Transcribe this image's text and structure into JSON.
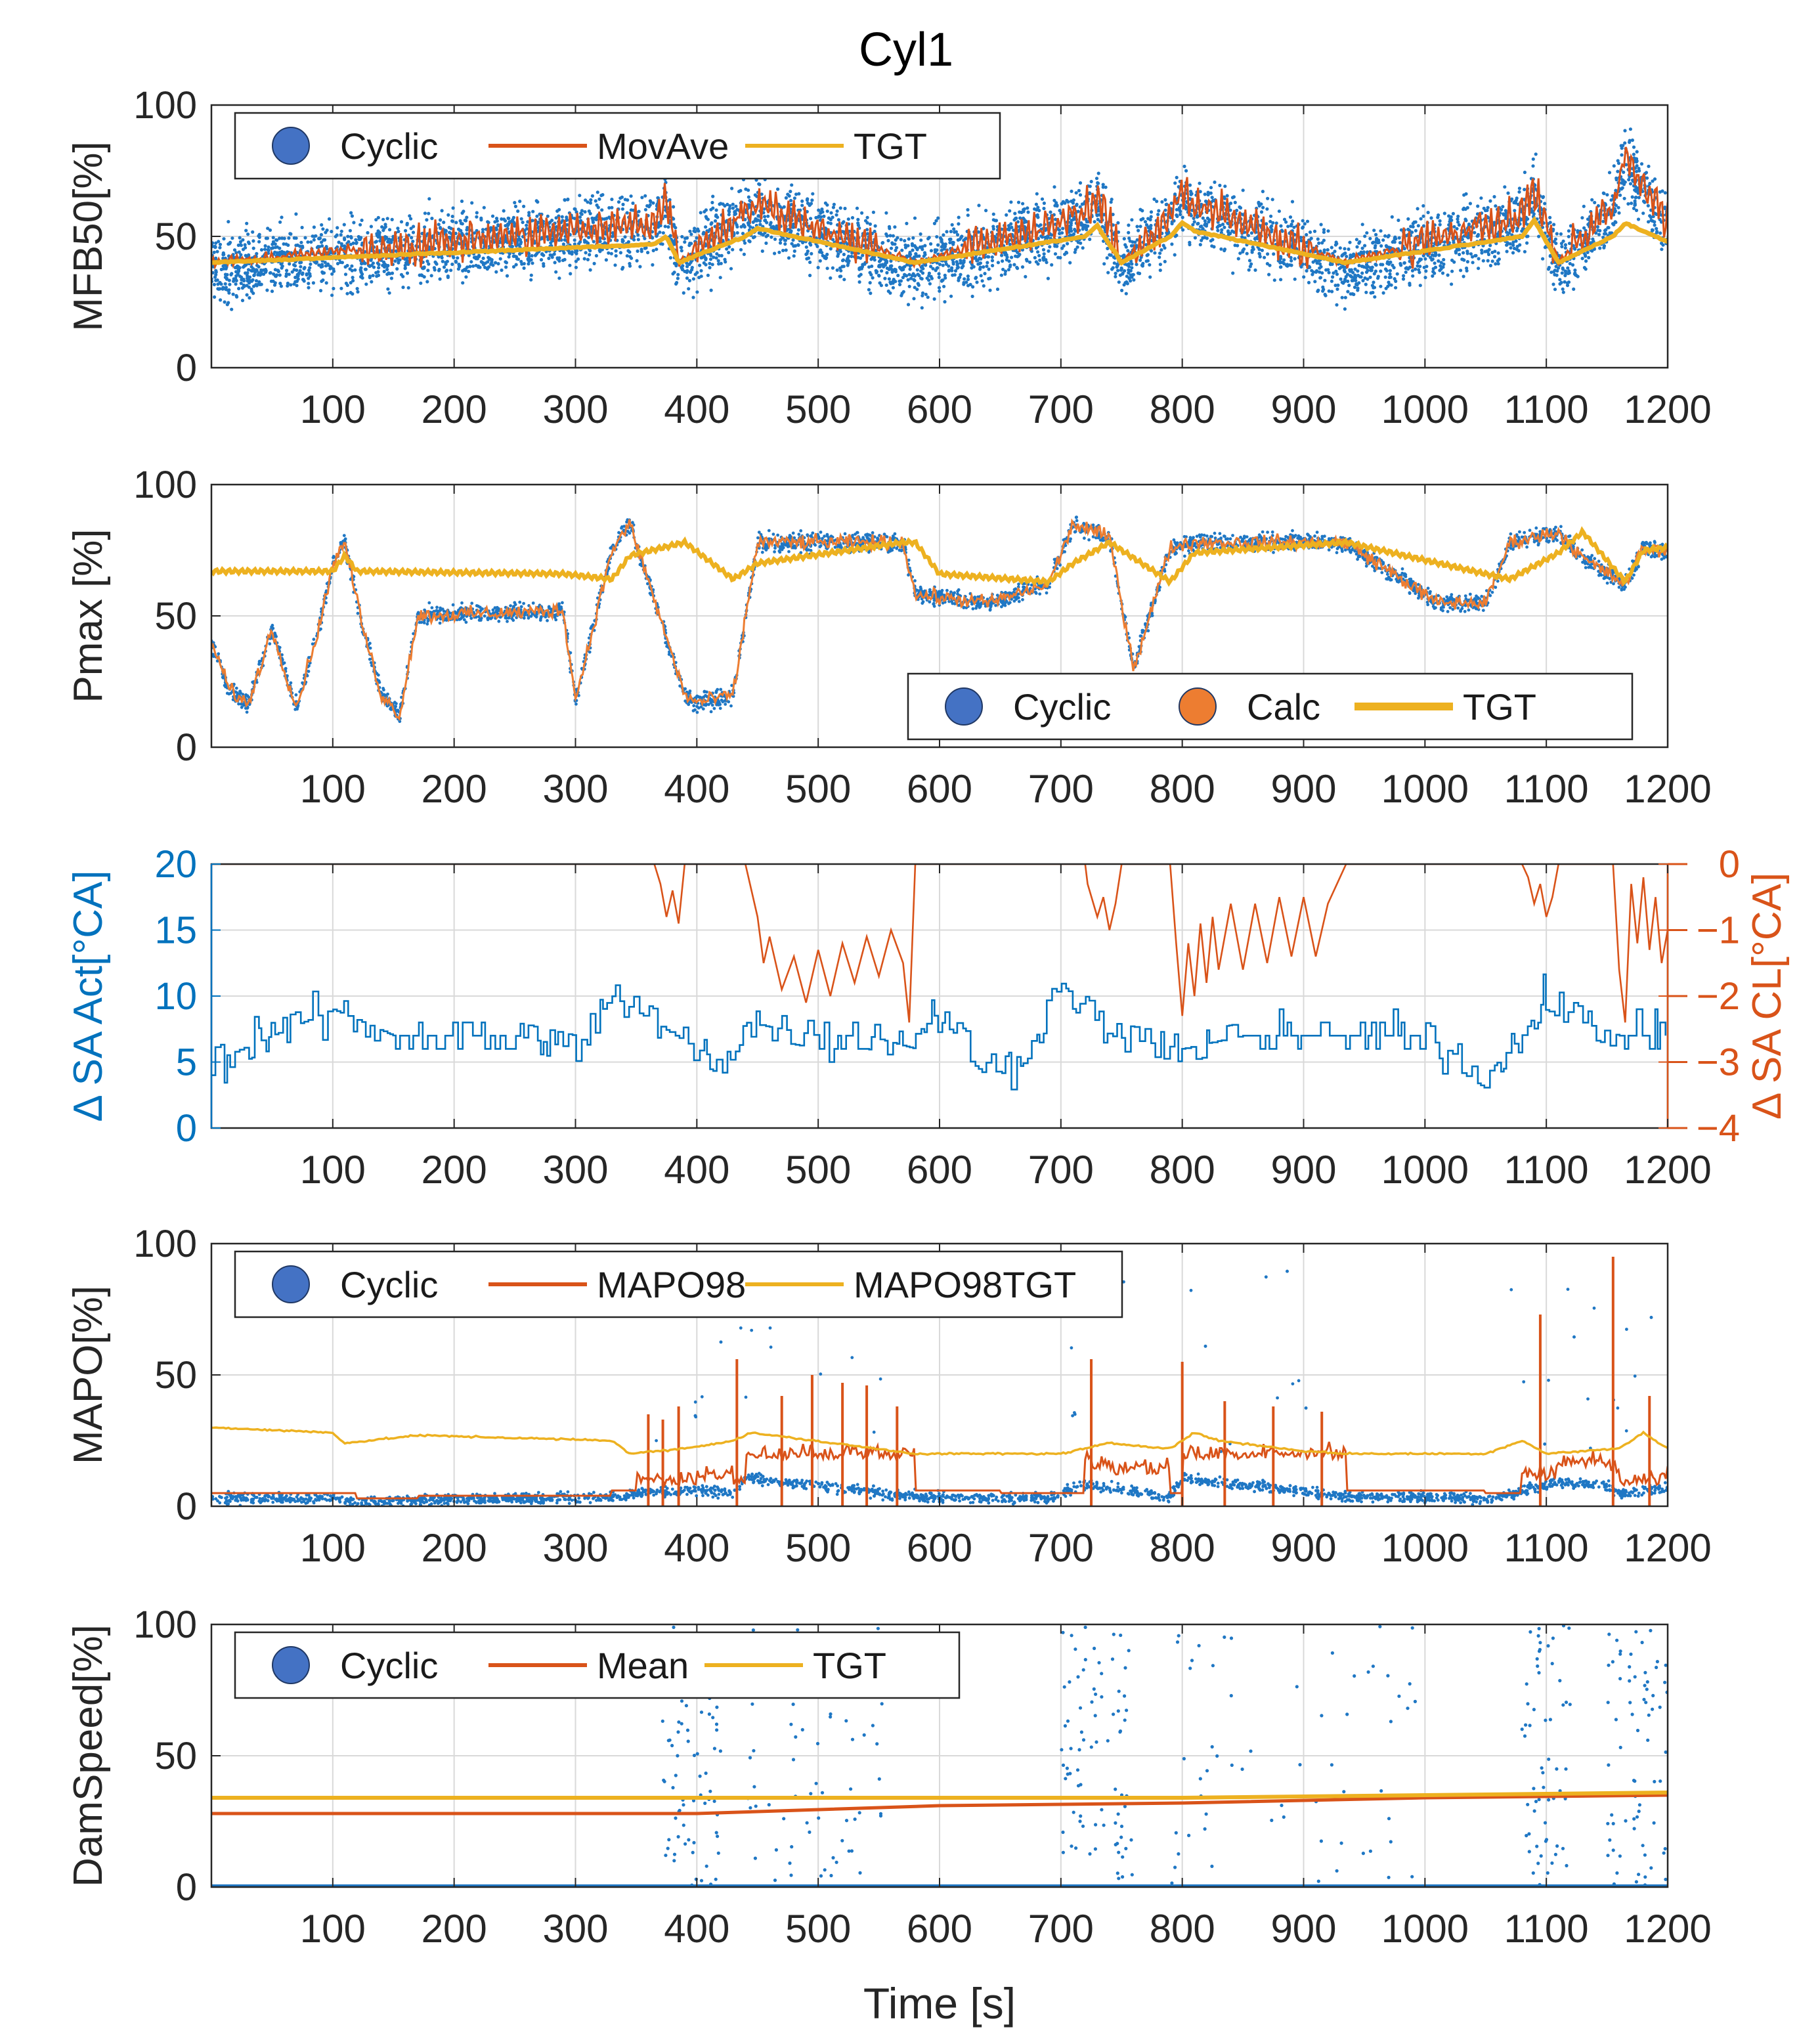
{
  "figure": {
    "title": "Cyl1"
  },
  "colors": {
    "cyclic": "#1f77c4",
    "cyclic_marker": "#4472c4",
    "calc": "#ed7d31",
    "movave": "#d95319",
    "tgt": "#edb120",
    "grid": "#d9d9d9",
    "axis": "#262626",
    "right_axis": "#d95319",
    "left_axis_blue": "#0072bd"
  },
  "chart_data": [
    {
      "type": "line",
      "name": "MFB50",
      "ylabel": "MFB50[%]",
      "xlabel": "",
      "xlim": [
        0,
        1200
      ],
      "ylim": [
        0,
        100
      ],
      "xticks": [
        100,
        200,
        300,
        400,
        500,
        600,
        700,
        800,
        900,
        1000,
        1100,
        1200
      ],
      "yticks": [
        0,
        50,
        100
      ],
      "legend": {
        "placement": "top-left",
        "entries": [
          "Cyclic",
          "MovAve",
          "TGT"
        ]
      },
      "series": [
        {
          "name": "TGT",
          "kind": "step",
          "x": [
            0,
            365,
            375,
            385,
            440,
            450,
            580,
            720,
            730,
            750,
            790,
            800,
            810,
            935,
            1080,
            1090,
            1110,
            1155,
            1165,
            1200
          ],
          "y": [
            40,
            47,
            50,
            40,
            50,
            53,
            40,
            50,
            54,
            40,
            50,
            55,
            52,
            40,
            50,
            56,
            40,
            50,
            55,
            48
          ]
        },
        {
          "name": "MovAve",
          "kind": "segments",
          "x": [
            0,
            365,
            375,
            385,
            440,
            450,
            580,
            720,
            730,
            750,
            790,
            800,
            810,
            935,
            1080,
            1090,
            1110,
            1155,
            1165,
            1200
          ],
          "y": [
            40,
            55,
            65,
            40,
            60,
            62,
            40,
            58,
            66,
            40,
            58,
            68,
            62,
            40,
            58,
            68,
            40,
            62,
            80,
            55
          ]
        },
        {
          "name": "Cyclic",
          "kind": "scatter",
          "spread": 14
        }
      ]
    },
    {
      "type": "line",
      "name": "Pmax",
      "ylabel": "Pmax [%]",
      "xlabel": "",
      "xlim": [
        0,
        1200
      ],
      "ylim": [
        0,
        100
      ],
      "xticks": [
        100,
        200,
        300,
        400,
        500,
        600,
        700,
        800,
        900,
        1000,
        1100,
        1200
      ],
      "yticks": [
        0,
        50,
        100
      ],
      "legend": {
        "placement": "bottom-right",
        "entries": [
          "Cyclic",
          "Calc",
          "TGT"
        ]
      },
      "series": [
        {
          "name": "TGT",
          "kind": "step",
          "x": [
            0,
            100,
            110,
            120,
            290,
            330,
            345,
            390,
            430,
            450,
            570,
            580,
            600,
            690,
            710,
            740,
            760,
            790,
            810,
            935,
            1050,
            1070,
            1110,
            1130,
            1165,
            1180,
            1200
          ],
          "y": [
            67,
            67,
            73,
            67,
            66,
            64,
            73,
            78,
            64,
            70,
            78,
            78,
            66,
            63,
            70,
            78,
            72,
            63,
            74,
            78,
            66,
            64,
            74,
            82,
            63,
            75,
            76
          ]
        },
        {
          "name": "Calc",
          "kind": "step",
          "x": [
            0,
            15,
            30,
            50,
            70,
            90,
            100,
            110,
            125,
            140,
            155,
            170,
            290,
            300,
            330,
            345,
            390,
            400,
            430,
            450,
            570,
            580,
            640,
            690,
            710,
            740,
            760,
            790,
            810,
            935,
            1010,
            1050,
            1070,
            1110,
            1130,
            1165,
            1180,
            1200
          ],
          "y": [
            40,
            22,
            16,
            45,
            15,
            48,
            70,
            78,
            45,
            20,
            12,
            50,
            52,
            18,
            75,
            85,
            20,
            17,
            20,
            78,
            78,
            58,
            55,
            62,
            85,
            80,
            30,
            76,
            78,
            78,
            55,
            55,
            78,
            82,
            72,
            62,
            76,
            74
          ]
        },
        {
          "name": "Cyclic",
          "kind": "scatter",
          "spread": 5
        }
      ]
    },
    {
      "type": "line",
      "name": "SA",
      "ylabel": "Δ SA Act[°CA]",
      "ylabel_right": "Δ SA CL[°CA]",
      "xlabel": "",
      "xlim": [
        0,
        1200
      ],
      "ylim": [
        0,
        20
      ],
      "ylim_right": [
        -4,
        0
      ],
      "xticks": [
        100,
        200,
        300,
        400,
        500,
        600,
        700,
        800,
        900,
        1000,
        1100,
        1200
      ],
      "yticks": [
        0,
        5,
        10,
        15,
        20
      ],
      "yticks_right": [
        -4,
        -3,
        -2,
        -1,
        0
      ],
      "series": [
        {
          "name": "SA Act",
          "axis": "left",
          "kind": "noisy_step",
          "x": [
            0,
            100,
            150,
            200,
            250,
            300,
            330,
            400,
            420,
            440,
            500,
            540,
            580,
            590,
            650,
            680,
            700,
            740,
            800,
            850,
            900,
            930,
            1000,
            1050,
            1080,
            1100,
            1130,
            1160,
            1200
          ],
          "y": [
            5,
            9,
            7,
            7,
            7,
            6,
            10,
            6,
            5,
            8,
            7,
            7,
            6,
            9,
            4,
            7,
            11,
            7,
            6,
            7,
            7,
            7,
            7,
            4,
            7,
            10,
            8,
            7,
            7
          ]
        },
        {
          "name": "SA CL",
          "axis": "right",
          "kind": "polyline",
          "x": [
            0,
            365,
            370,
            375,
            380,
            385,
            390,
            440,
            450,
            455,
            460,
            470,
            480,
            490,
            500,
            510,
            520,
            530,
            540,
            550,
            560,
            570,
            575,
            580,
            720,
            722,
            730,
            735,
            740,
            745,
            750,
            790,
            795,
            800,
            805,
            810,
            815,
            820,
            825,
            830,
            840,
            850,
            860,
            870,
            880,
            890,
            900,
            910,
            920,
            935,
            1080,
            1085,
            1090,
            1095,
            1100,
            1105,
            1110,
            1155,
            1160,
            1165,
            1170,
            1175,
            1180,
            1185,
            1190,
            1195,
            1200
          ],
          "y": [
            0,
            0,
            -0.3,
            -0.8,
            -0.4,
            -0.9,
            0,
            0,
            -0.8,
            -1.5,
            -1.1,
            -1.9,
            -1.4,
            -2.1,
            -1.3,
            -2.0,
            -1.2,
            -1.8,
            -1.1,
            -1.7,
            -1.0,
            -1.5,
            -2.4,
            0,
            0,
            -0.3,
            -0.8,
            -0.5,
            -1.0,
            -0.6,
            0,
            0,
            -1.2,
            -2.3,
            -1.2,
            -2.0,
            -0.9,
            -1.8,
            -0.8,
            -1.6,
            -0.6,
            -1.6,
            -0.6,
            -1.5,
            -0.5,
            -1.4,
            -0.5,
            -1.4,
            -0.6,
            0,
            0,
            -0.2,
            -0.6,
            -0.3,
            -0.8,
            -0.5,
            0,
            0,
            -1.6,
            -2.4,
            -0.3,
            -1.2,
            -0.2,
            -1.3,
            -0.5,
            -1.5,
            -1.0
          ]
        }
      ]
    },
    {
      "type": "line",
      "name": "MAPO",
      "ylabel": "MAPO[%]",
      "xlabel": "",
      "xlim": [
        0,
        1200
      ],
      "ylim": [
        0,
        100
      ],
      "xticks": [
        100,
        200,
        300,
        400,
        500,
        600,
        700,
        800,
        900,
        1000,
        1100,
        1200
      ],
      "yticks": [
        0,
        50,
        100
      ],
      "legend": {
        "placement": "top-left",
        "entries": [
          "Cyclic",
          "MAPO98",
          "MAPO98TGT"
        ]
      },
      "series": [
        {
          "name": "MAPO98TGT",
          "kind": "step",
          "x": [
            0,
            100,
            110,
            170,
            330,
            345,
            390,
            430,
            445,
            580,
            700,
            720,
            740,
            790,
            810,
            830,
            900,
            935,
            1050,
            1080,
            1100,
            1160,
            1180,
            1200
          ],
          "y": [
            30,
            28,
            24,
            27,
            25,
            20,
            22,
            25,
            28,
            20,
            20,
            22,
            24,
            22,
            28,
            25,
            21,
            20,
            20,
            25,
            20,
            22,
            28,
            22
          ]
        },
        {
          "name": "MAPO98",
          "kind": "step",
          "x": [
            0,
            100,
            120,
            170,
            330,
            350,
            400,
            430,
            440,
            580,
            650,
            690,
            720,
            740,
            790,
            800,
            935,
            1050,
            1080,
            1110,
            1130,
            1150,
            1160,
            1200
          ],
          "y": [
            5,
            5,
            3,
            4,
            6,
            8,
            10,
            8,
            18,
            6,
            5,
            5,
            14,
            12,
            5,
            18,
            6,
            5,
            10,
            15,
            15,
            13,
            8,
            12
          ]
        },
        {
          "name": "MAPO98_spikes",
          "kind": "spikes",
          "x": [
            360,
            372,
            385,
            433,
            470,
            495,
            520,
            540,
            565,
            725,
            800,
            835,
            875,
            915,
            1095,
            1155,
            1185
          ],
          "y": [
            35,
            33,
            38,
            56,
            42,
            50,
            47,
            46,
            38,
            56,
            55,
            40,
            38,
            36,
            73,
            95,
            42
          ]
        },
        {
          "name": "Cyclic",
          "kind": "scatter",
          "spread": 3
        }
      ]
    },
    {
      "type": "line",
      "name": "DamSpeed",
      "ylabel": "DamSpeed[%]",
      "xlabel": "Time [s]",
      "xlim": [
        0,
        1200
      ],
      "ylim": [
        0,
        100
      ],
      "xticks": [
        100,
        200,
        300,
        400,
        500,
        600,
        700,
        800,
        900,
        1000,
        1100,
        1200
      ],
      "yticks": [
        0,
        50,
        100
      ],
      "legend": {
        "placement": "top-left",
        "entries": [
          "Cyclic",
          "Mean",
          "TGT"
        ]
      },
      "series": [
        {
          "name": "TGT",
          "kind": "polyline",
          "x": [
            0,
            800,
            1000,
            1200
          ],
          "y": [
            34,
            34,
            35,
            36
          ]
        },
        {
          "name": "Mean",
          "kind": "polyline",
          "x": [
            0,
            400,
            600,
            800,
            1000,
            1200
          ],
          "y": [
            28,
            28,
            31,
            32,
            34,
            35
          ]
        },
        {
          "name": "Cyclic",
          "kind": "scatter_outliers",
          "baseline": 0
        }
      ]
    }
  ]
}
